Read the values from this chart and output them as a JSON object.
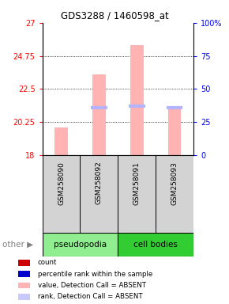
{
  "title": "GDS3288 / 1460598_at",
  "samples": [
    "GSM258090",
    "GSM258092",
    "GSM258091",
    "GSM258093"
  ],
  "bar_values": [
    19.9,
    23.5,
    25.5,
    21.3
  ],
  "bar_baseline": 18,
  "rank_values": [
    18.05,
    21.2,
    21.35,
    21.2
  ],
  "rank_visible": [
    false,
    true,
    true,
    true
  ],
  "bar_color": "#FFB3B3",
  "rank_color": "#B3B3FF",
  "ylim_left": [
    18,
    27
  ],
  "yticks_left": [
    18,
    20.25,
    22.5,
    24.75,
    27
  ],
  "ytick_labels_left": [
    "18",
    "20.25",
    "22.5",
    "24.75",
    "27"
  ],
  "ylim_right": [
    0,
    100
  ],
  "yticks_right": [
    0,
    25,
    50,
    75,
    100
  ],
  "ytick_labels_right": [
    "0",
    "25",
    "50",
    "75",
    "100%"
  ],
  "groups": [
    {
      "label": "pseudopodia",
      "color": "#90EE90",
      "cols": [
        0,
        1
      ]
    },
    {
      "label": "cell bodies",
      "color": "#32CD32",
      "cols": [
        2,
        3
      ]
    }
  ],
  "legend_items": [
    {
      "color": "#CC0000",
      "label": "count"
    },
    {
      "color": "#0000CC",
      "label": "percentile rank within the sample"
    },
    {
      "color": "#FFB3B3",
      "label": "value, Detection Call = ABSENT"
    },
    {
      "color": "#C8C8FF",
      "label": "rank, Detection Call = ABSENT"
    }
  ]
}
